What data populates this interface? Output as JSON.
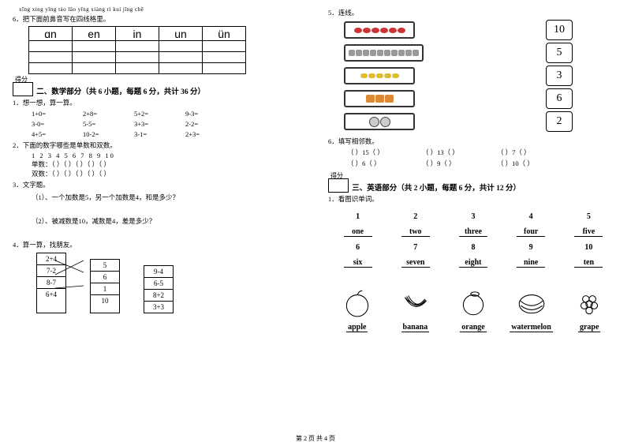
{
  "left": {
    "pinyin_hint": "xīng xing    yīng táo    lǎo yīng    xiàng rì kuí    jǐng chē",
    "q6": "6．把下面前鼻音写在四线格里。",
    "pinyin_cells": [
      "ɑn",
      "en",
      "in",
      "un",
      "ün"
    ],
    "score_label": "得分",
    "section2": "二、数学部分（共 6 小题，每题 6 分，共计 36 分）",
    "q1": "1．想一想，算一算。",
    "math": [
      [
        "1+0=",
        "2+8=",
        "5+2=",
        "9-3="
      ],
      [
        "3-0=",
        "5-5=",
        "3+3=",
        "2-2="
      ],
      [
        "4+5=",
        "10-2=",
        "3-1=",
        "2+3="
      ]
    ],
    "q2": "2．下面的数字哪些是单数和双数。",
    "numbers": "1  2  3  4  5  6  7  8  9  10",
    "odd": "单数：（  ）（  ）（  ）（  ）（  ）",
    "even": "双数：（  ）（  ）（  ）（  ）（  ）",
    "q3": "3．文字题。",
    "q3_1": "（1）、一个加数是5，另一个加数是4，和是多少？",
    "q3_2": "（2）、被减数是10，减数是4，差是多少？",
    "q4": "4．算一算，找朋友。",
    "match_left": [
      "2+4",
      "7-2",
      "8-7",
      "6+4"
    ],
    "match_mid": [
      "5",
      "6",
      "1",
      "10"
    ],
    "match_right": [
      "9-4",
      "6-5",
      "8+2",
      "3+3"
    ]
  },
  "right": {
    "q5": "5．连线。",
    "connect": [
      {
        "count": 6,
        "kind": "red",
        "num": "10"
      },
      {
        "count": 10,
        "kind": "bee",
        "num": "5"
      },
      {
        "count": 5,
        "kind": "corn",
        "num": "3"
      },
      {
        "count": 3,
        "kind": "lady",
        "num": "6"
      },
      {
        "count": 2,
        "kind": "mask",
        "num": "2"
      }
    ],
    "q6": "6．填写相邻数。",
    "neighbors": [
      [
        "（  ）15（  ）",
        "（  ）13（  ）",
        "（  ）7（  ）"
      ],
      [
        "（  ）6（  ）",
        "（  ）9（  ）",
        "（  ）10（  ）"
      ]
    ],
    "score_label": "得分",
    "section3": "三、英语部分（共 2 小题，每题 6 分，共计 12 分）",
    "q1": "1．看图识单词。",
    "nums1": [
      "1",
      "2",
      "3",
      "4",
      "5"
    ],
    "words1": [
      "one",
      "two",
      "three",
      "four",
      "five"
    ],
    "nums2": [
      "6",
      "7",
      "8",
      "9",
      "10"
    ],
    "words2": [
      "six",
      "seven",
      "eight",
      "nine",
      "ten"
    ],
    "fruits": [
      "apple",
      "banana",
      "orange",
      "watermelon",
      "grape"
    ]
  },
  "footer": "第 2 页 共 4 页"
}
